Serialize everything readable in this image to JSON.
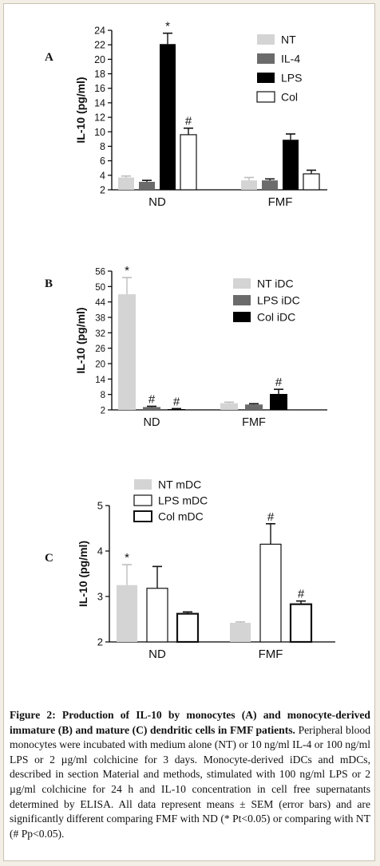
{
  "chart_data": [
    {
      "type": "bar",
      "panel_label": "A",
      "ylabel": "IL-10 (pg/ml)",
      "ylim": [
        2,
        24
      ],
      "yticks": [
        2,
        4,
        6,
        8,
        10,
        12,
        14,
        16,
        18,
        20,
        22,
        24
      ],
      "categories": [
        "ND",
        "FMF"
      ],
      "legend_position": "top-right",
      "series": [
        {
          "name": "NT",
          "values": [
            3.7,
            3.3
          ],
          "err": [
            0.2,
            0.4
          ],
          "color": "#d4d4d4",
          "outline": false,
          "marks": [
            "",
            ""
          ]
        },
        {
          "name": "IL-4",
          "values": [
            3.1,
            3.3
          ],
          "err": [
            0.2,
            0.2
          ],
          "color": "#6b6b6b",
          "outline": false,
          "marks": [
            "",
            ""
          ]
        },
        {
          "name": "LPS",
          "values": [
            22.1,
            8.9
          ],
          "err": [
            1.5,
            0.8
          ],
          "color": "#000000",
          "outline": false,
          "marks": [
            "*",
            ""
          ]
        },
        {
          "name": "Col",
          "values": [
            9.6,
            4.2
          ],
          "err": [
            0.9,
            0.5
          ],
          "color": "#ffffff",
          "outline": true,
          "marks": [
            "#",
            ""
          ]
        }
      ]
    },
    {
      "type": "bar",
      "panel_label": "B",
      "ylabel": "IL-10 (pg/ml)",
      "ylim": [
        2,
        56
      ],
      "yticks": [
        2,
        8,
        14,
        20,
        26,
        32,
        38,
        44,
        50,
        56
      ],
      "categories": [
        "ND",
        "FMF"
      ],
      "legend_position": "top-right",
      "series": [
        {
          "name": "NT iDC",
          "values": [
            47,
            4.6
          ],
          "err": [
            6.5,
            0.4
          ],
          "color": "#d4d4d4",
          "outline": false,
          "marks": [
            "*",
            ""
          ]
        },
        {
          "name": "LPS iDC",
          "values": [
            3.1,
            4.1
          ],
          "err": [
            0.3,
            0.3
          ],
          "color": "#6b6b6b",
          "outline": false,
          "marks": [
            "#",
            ""
          ]
        },
        {
          "name": "Col iDC",
          "values": [
            2.3,
            8.2
          ],
          "err": [
            0.2,
            1.8
          ],
          "color": "#000000",
          "outline": false,
          "marks": [
            "#",
            "#"
          ]
        }
      ]
    },
    {
      "type": "bar",
      "panel_label": "C",
      "ylabel": "IL-10 (pg/ml)",
      "ylim": [
        2,
        5
      ],
      "yticks": [
        2,
        3,
        4,
        5
      ],
      "categories": [
        "ND",
        "FMF"
      ],
      "legend_position": "top-left",
      "series": [
        {
          "name": "NT mDC",
          "values": [
            3.25,
            2.42
          ],
          "err": [
            0.45,
            0.02
          ],
          "color": "#d4d4d4",
          "outline": false,
          "marks": [
            "*",
            ""
          ]
        },
        {
          "name": "LPS mDC",
          "values": [
            3.18,
            4.15
          ],
          "err": [
            0.48,
            0.45
          ],
          "color": "#ffffff",
          "outline": true,
          "marks": [
            "",
            "#"
          ]
        },
        {
          "name": "Col mDC",
          "values": [
            2.62,
            2.83
          ],
          "err": [
            0.04,
            0.07
          ],
          "color": "#ffffff",
          "outline": true,
          "thick": true,
          "marks": [
            "",
            "#"
          ]
        }
      ]
    }
  ],
  "caption": {
    "title": "Figure 2: Production of IL-10 by monocytes (A) and monocyte-derived immature (B) and mature (C) dendritic cells in FMF patients.",
    "body": "Peripheral blood monocytes were incubated with medium alone (NT) or 10 ng/ml IL-4 or 100 ng/ml LPS or 2 µg/ml colchicine for 3 days. Monocyte-derived iDCs and mDCs, described in section Material and methods, stimulated with 100 ng/ml LPS or 2 µg/ml colchicine for 24 h and IL-10 concentration in cell free supernatants determined by ELISA. All data represent means ± SEM (error bars) and are significantly different comparing FMF with ND (* Pt<0.05) or comparing with NT (# Pp<0.05)."
  }
}
